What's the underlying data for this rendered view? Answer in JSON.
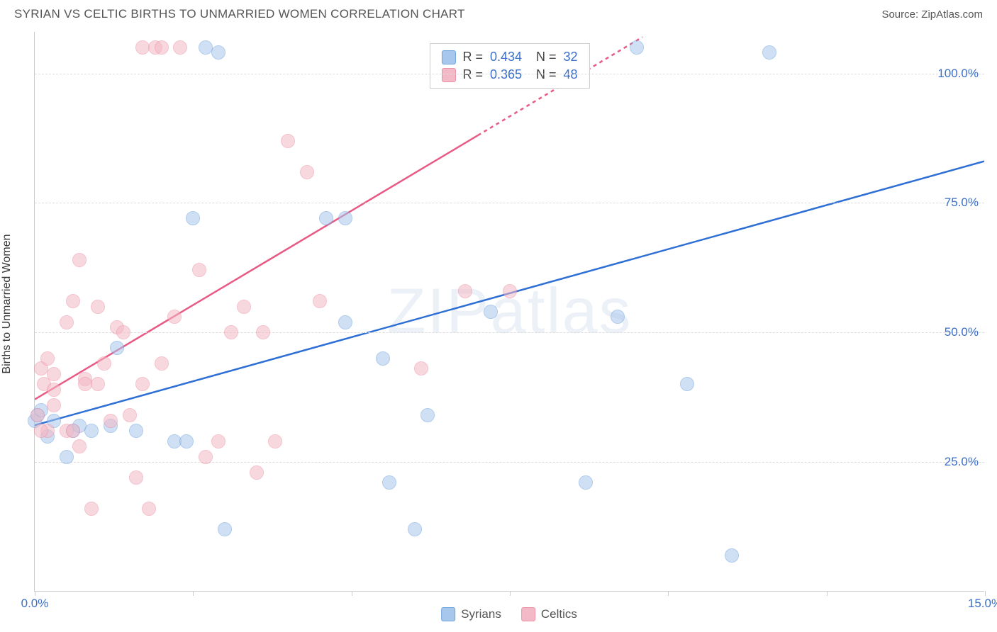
{
  "header": {
    "title": "SYRIAN VS CELTIC BIRTHS TO UNMARRIED WOMEN CORRELATION CHART",
    "source": "Source: ZipAtlas.com"
  },
  "chart": {
    "type": "scatter",
    "y_axis_label": "Births to Unmarried Women",
    "watermark": "ZIPatlas",
    "background_color": "#ffffff",
    "grid_color": "#dddddd",
    "axis_color": "#cccccc",
    "xlim": [
      0,
      15
    ],
    "ylim": [
      0,
      108
    ],
    "x_ticks": [
      0,
      2.5,
      5,
      7.5,
      10,
      12.5,
      15
    ],
    "x_tick_labels_shown": {
      "0": "0.0%",
      "15": "15.0%"
    },
    "y_ticks": [
      25,
      50,
      75,
      100
    ],
    "y_tick_labels": {
      "25": "25.0%",
      "50": "50.0%",
      "75": "75.0%",
      "100": "100.0%"
    },
    "point_radius": 10,
    "point_opacity": 0.55,
    "series": [
      {
        "name": "Syrians",
        "color_fill": "#a8c7ec",
        "color_stroke": "#6fa3dd",
        "trend_color": "#2e6fd6",
        "trend_width": 2.5,
        "r": "0.434",
        "n": "32",
        "trend_line": {
          "x1": 0,
          "y1": 32,
          "x2": 15,
          "y2": 83
        },
        "points": [
          {
            "x": 0.0,
            "y": 33
          },
          {
            "x": 0.05,
            "y": 34
          },
          {
            "x": 0.1,
            "y": 35
          },
          {
            "x": 0.2,
            "y": 30
          },
          {
            "x": 0.3,
            "y": 33
          },
          {
            "x": 0.6,
            "y": 31
          },
          {
            "x": 0.5,
            "y": 26
          },
          {
            "x": 0.7,
            "y": 32
          },
          {
            "x": 0.9,
            "y": 31
          },
          {
            "x": 1.2,
            "y": 32
          },
          {
            "x": 1.3,
            "y": 47
          },
          {
            "x": 1.6,
            "y": 31
          },
          {
            "x": 2.2,
            "y": 29
          },
          {
            "x": 2.4,
            "y": 29
          },
          {
            "x": 2.5,
            "y": 72
          },
          {
            "x": 2.7,
            "y": 105
          },
          {
            "x": 2.9,
            "y": 104
          },
          {
            "x": 3.0,
            "y": 12
          },
          {
            "x": 4.6,
            "y": 72
          },
          {
            "x": 4.9,
            "y": 72
          },
          {
            "x": 4.9,
            "y": 52
          },
          {
            "x": 5.5,
            "y": 45
          },
          {
            "x": 5.6,
            "y": 21
          },
          {
            "x": 6.0,
            "y": 12
          },
          {
            "x": 6.2,
            "y": 34
          },
          {
            "x": 7.2,
            "y": 54
          },
          {
            "x": 8.7,
            "y": 21
          },
          {
            "x": 9.2,
            "y": 53
          },
          {
            "x": 10.3,
            "y": 40
          },
          {
            "x": 11.0,
            "y": 7
          },
          {
            "x": 9.5,
            "y": 105
          },
          {
            "x": 11.6,
            "y": 104
          }
        ]
      },
      {
        "name": "Celtics",
        "color_fill": "#f4b9c6",
        "color_stroke": "#ec91a7",
        "trend_color": "#e85a84",
        "trend_width": 2.5,
        "r": "0.365",
        "n": "48",
        "trend_line": {
          "x1": 0,
          "y1": 37,
          "x2": 7.0,
          "y2": 88
        },
        "trend_line_dashed": {
          "x1": 7.0,
          "y1": 88,
          "x2": 9.6,
          "y2": 107
        },
        "points": [
          {
            "x": 0.05,
            "y": 34
          },
          {
            "x": 0.1,
            "y": 43
          },
          {
            "x": 0.15,
            "y": 40
          },
          {
            "x": 0.2,
            "y": 45
          },
          {
            "x": 0.2,
            "y": 31
          },
          {
            "x": 0.1,
            "y": 31
          },
          {
            "x": 0.3,
            "y": 39
          },
          {
            "x": 0.3,
            "y": 42
          },
          {
            "x": 0.3,
            "y": 36
          },
          {
            "x": 0.5,
            "y": 52
          },
          {
            "x": 0.5,
            "y": 31
          },
          {
            "x": 0.6,
            "y": 56
          },
          {
            "x": 0.6,
            "y": 31
          },
          {
            "x": 0.7,
            "y": 28
          },
          {
            "x": 0.7,
            "y": 64
          },
          {
            "x": 0.8,
            "y": 41
          },
          {
            "x": 0.8,
            "y": 40
          },
          {
            "x": 0.9,
            "y": 16
          },
          {
            "x": 1.0,
            "y": 55
          },
          {
            "x": 1.0,
            "y": 40
          },
          {
            "x": 1.1,
            "y": 44
          },
          {
            "x": 1.2,
            "y": 33
          },
          {
            "x": 1.3,
            "y": 51
          },
          {
            "x": 1.4,
            "y": 50
          },
          {
            "x": 1.5,
            "y": 34
          },
          {
            "x": 1.6,
            "y": 22
          },
          {
            "x": 1.7,
            "y": 40
          },
          {
            "x": 1.7,
            "y": 105
          },
          {
            "x": 1.8,
            "y": 16
          },
          {
            "x": 1.9,
            "y": 105
          },
          {
            "x": 2.0,
            "y": 105
          },
          {
            "x": 2.0,
            "y": 44
          },
          {
            "x": 2.2,
            "y": 53
          },
          {
            "x": 2.3,
            "y": 105
          },
          {
            "x": 2.6,
            "y": 62
          },
          {
            "x": 2.7,
            "y": 26
          },
          {
            "x": 2.9,
            "y": 29
          },
          {
            "x": 3.1,
            "y": 50
          },
          {
            "x": 3.3,
            "y": 55
          },
          {
            "x": 3.5,
            "y": 23
          },
          {
            "x": 3.6,
            "y": 50
          },
          {
            "x": 3.8,
            "y": 29
          },
          {
            "x": 4.0,
            "y": 87
          },
          {
            "x": 4.3,
            "y": 81
          },
          {
            "x": 4.5,
            "y": 56
          },
          {
            "x": 6.1,
            "y": 43
          },
          {
            "x": 6.8,
            "y": 58
          },
          {
            "x": 7.5,
            "y": 58
          }
        ]
      }
    ],
    "legend_bottom": [
      {
        "label": "Syrians",
        "color": "#a8c7ec",
        "stroke": "#6fa3dd"
      },
      {
        "label": "Celtics",
        "color": "#f4b9c6",
        "stroke": "#ec91a7"
      }
    ]
  }
}
